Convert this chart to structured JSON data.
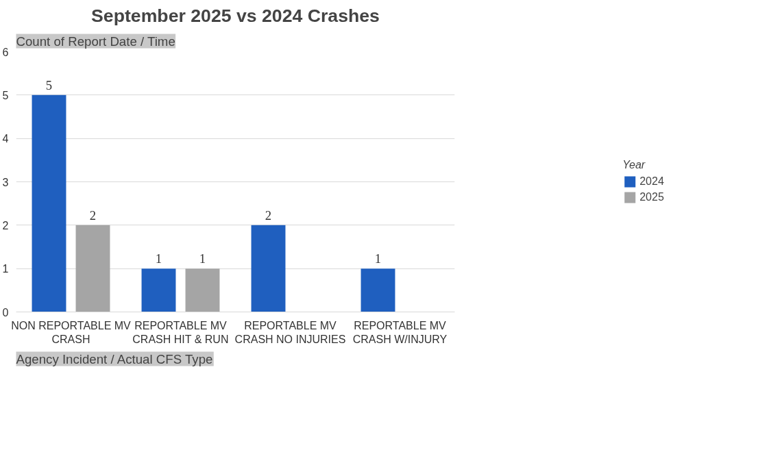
{
  "chart_data": {
    "type": "bar",
    "title": "September 2025 vs 2024 Crashes",
    "categories": [
      "NON REPORTABLE MV CRASH",
      "REPORTABLE MV CRASH HIT & RUN",
      "REPORTABLE MV CRASH NO INJURIES",
      "REPORTABLE MV CRASH W/INJURY"
    ],
    "series": [
      {
        "name": "2024",
        "color": "#1f5fbf",
        "values": [
          5,
          1,
          2,
          1
        ]
      },
      {
        "name": "2025",
        "color": "#a5a5a5",
        "values": [
          2,
          1,
          null,
          null
        ]
      }
    ],
    "ylim": [
      0,
      6
    ],
    "yticks": [
      0,
      1,
      2,
      3,
      4,
      5,
      6
    ],
    "grid": "y",
    "legend": "right",
    "legend_title": "Year",
    "data_labels": true,
    "annotations": [
      "Count of Report Date / Time",
      "Agency Incident / Actual CFS Type"
    ]
  }
}
